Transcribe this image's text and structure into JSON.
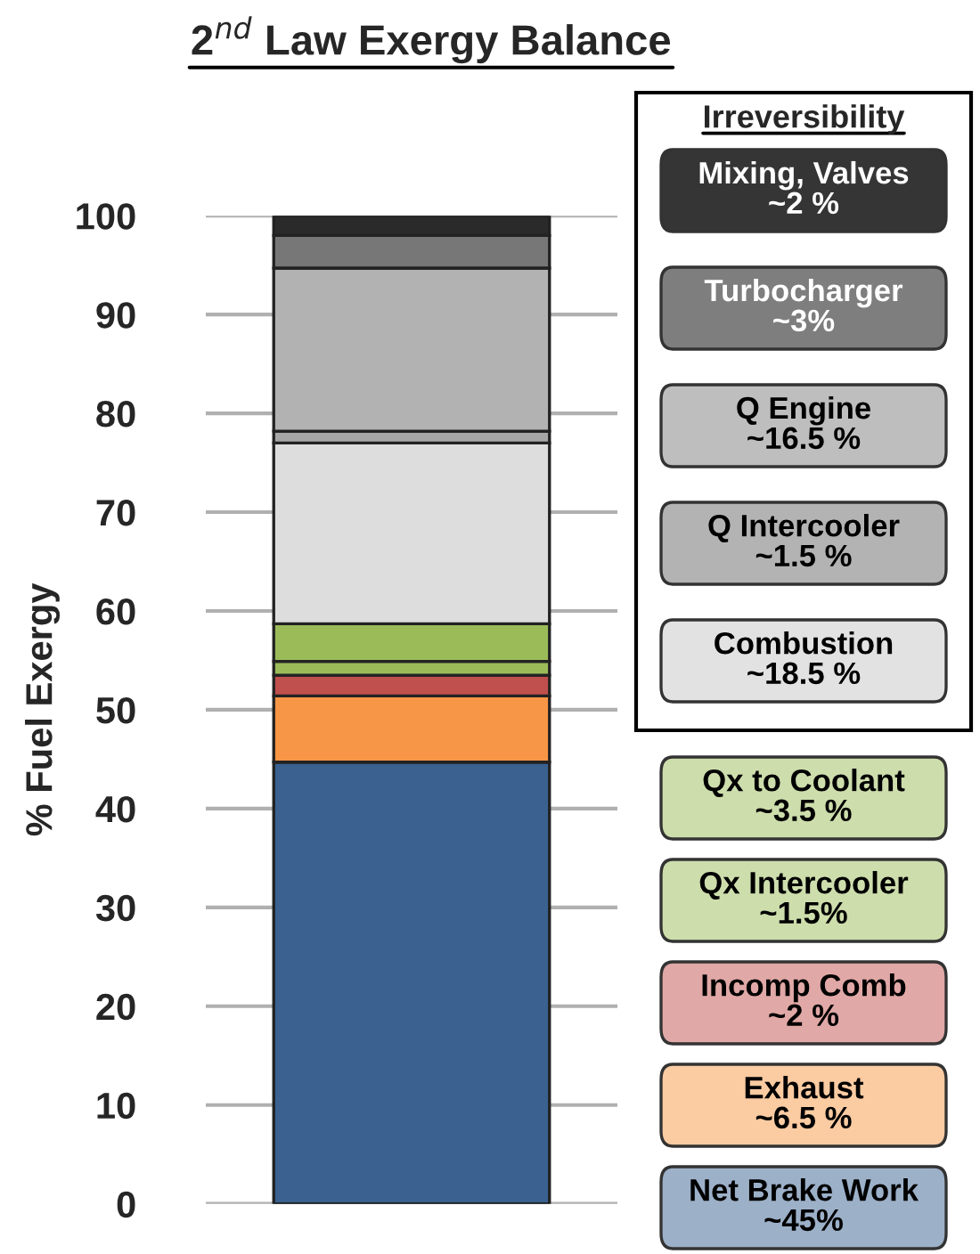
{
  "chart_data": {
    "type": "bar",
    "stacked": true,
    "title": "2$^{nd}$ Law Exergy Balance",
    "ylabel": "% Fuel Exergy",
    "categories": [
      null
    ],
    "ylim": [
      0,
      100
    ],
    "yticks": [
      0,
      10,
      20,
      30,
      40,
      50,
      60,
      70,
      80,
      90,
      100
    ],
    "grid": "y",
    "legend": "right",
    "legend_title": "Irreversibility",
    "series": [
      {
        "name": "Net Brake Work\n~45%",
        "color": "#3a6190",
        "values": [
          44.7
        ]
      },
      {
        "name": "Exhaust\n~6.5 %",
        "color": "#f79646",
        "values": [
          6.7
        ]
      },
      {
        "name": "Incomp Comb\n~2 %",
        "color": "#c0504d",
        "values": [
          2.1
        ]
      },
      {
        "name": "Qx Intercooler\n~1.5%",
        "color": "#9bbb59",
        "values": [
          1.4
        ]
      },
      {
        "name": "Qx to Coolant\n~3.5 %",
        "color": "#9bbb59",
        "values": [
          3.8
        ]
      },
      {
        "name": "Combustion\n~18.5 %",
        "color": "#dddddd",
        "values": [
          18.3
        ]
      },
      {
        "name": "Q Intercooler\n~1.5 %",
        "color": "#a6a6a6",
        "values": [
          1.2
        ]
      },
      {
        "name": "Q Engine\n~16.5 %",
        "color": "#b2b2b2",
        "values": [
          16.5
        ]
      },
      {
        "name": "Turbocharger\n~3%",
        "color": "#777777",
        "values": [
          3.3
        ]
      },
      {
        "name": "Mixing, Valves\n~2 %",
        "color": "#2a2a2a",
        "values": [
          2.0
        ]
      }
    ]
  }
}
